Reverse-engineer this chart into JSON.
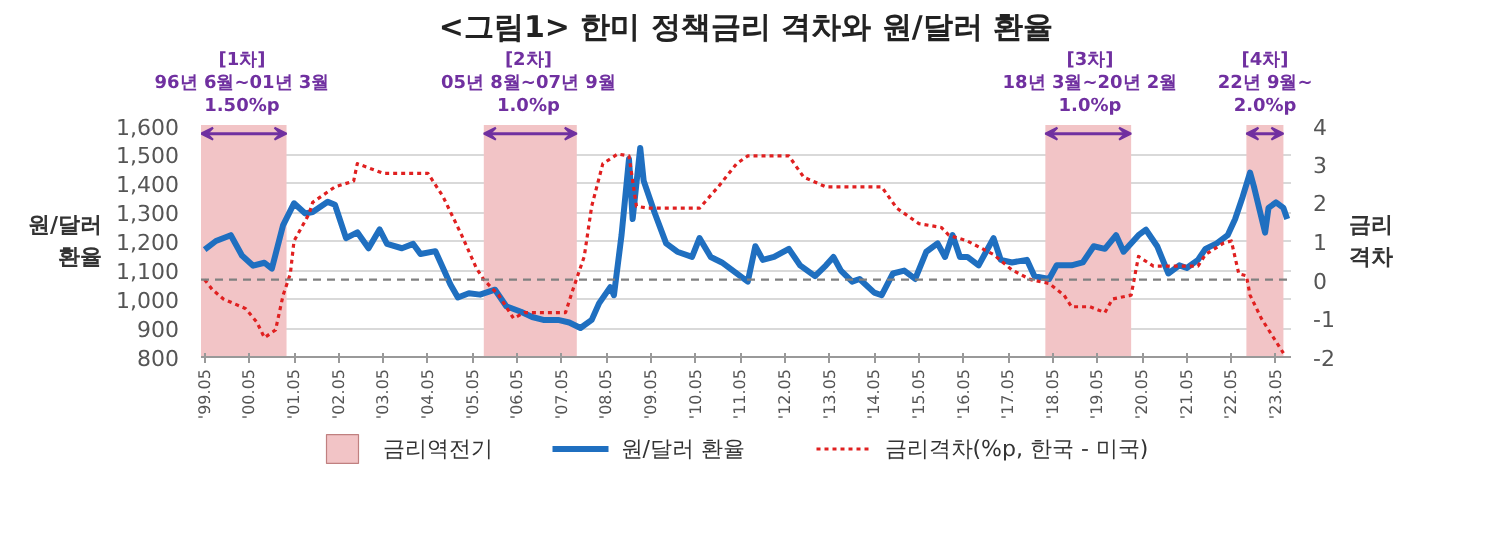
{
  "chart_data": {
    "type": "line",
    "title": "<그림1> 한미 정책금리 격차와 원/달러 환율",
    "ylabel": "원/달러\n환율",
    "y2label": "금리\n격차",
    "xlim": [
      "1999-04",
      "2023-09"
    ],
    "xticks": [
      {
        "value": "1999-05",
        "label": "'99.05"
      },
      {
        "value": "2000-05",
        "label": "'00.05"
      },
      {
        "value": "2001-05",
        "label": "'01.05"
      },
      {
        "value": "2002-05",
        "label": "'02.05"
      },
      {
        "value": "2003-05",
        "label": "'03.05"
      },
      {
        "value": "2004-05",
        "label": "'04.05"
      },
      {
        "value": "2005-05",
        "label": "'05.05"
      },
      {
        "value": "2006-05",
        "label": "'06.05"
      },
      {
        "value": "2007-05",
        "label": "'07.05"
      },
      {
        "value": "2008-05",
        "label": "'08.05"
      },
      {
        "value": "2009-05",
        "label": "'09.05"
      },
      {
        "value": "2010-05",
        "label": "'10.05"
      },
      {
        "value": "2011-05",
        "label": "'11.05"
      },
      {
        "value": "2012-05",
        "label": "'12.05"
      },
      {
        "value": "2013-05",
        "label": "'13.05"
      },
      {
        "value": "2014-05",
        "label": "'14.05"
      },
      {
        "value": "2015-05",
        "label": "'15.05"
      },
      {
        "value": "2016-05",
        "label": "'16.05"
      },
      {
        "value": "2017-05",
        "label": "'17.05"
      },
      {
        "value": "2018-05",
        "label": "'18.05"
      },
      {
        "value": "2019-05",
        "label": "'19.05"
      },
      {
        "value": "2020-05",
        "label": "'20.05"
      },
      {
        "value": "2021-05",
        "label": "'21.05"
      },
      {
        "value": "2022-05",
        "label": "'22.05"
      },
      {
        "value": "2023-05",
        "label": "'23.05"
      }
    ],
    "ylim": [
      800,
      1600
    ],
    "yticks": [
      {
        "value": 800,
        "label": "800"
      },
      {
        "value": 900,
        "label": "900"
      },
      {
        "value": 1000,
        "label": "1,000"
      },
      {
        "value": 1100,
        "label": "1,100"
      },
      {
        "value": 1200,
        "label": "1,200"
      },
      {
        "value": 1300,
        "label": "1,300"
      },
      {
        "value": 1400,
        "label": "1,400"
      },
      {
        "value": 1500,
        "label": "1,500"
      },
      {
        "value": 1600,
        "label": "1,600"
      }
    ],
    "y2lim": [
      -2,
      4
    ],
    "y2ticks": [
      -2,
      -1,
      0,
      1,
      2,
      3,
      4
    ],
    "grid": "y",
    "legend": "bottom",
    "series": [
      {
        "name": "원/달러 환율",
        "color": "#1f6fc0",
        "line_style": "solid",
        "x": [
          "1999-05",
          "1999-08",
          "1999-12",
          "2000-03",
          "2000-06",
          "2000-09",
          "2000-11",
          "2001-02",
          "2001-05",
          "2001-08",
          "2001-10",
          "2002-02",
          "2002-04",
          "2002-07",
          "2002-10",
          "2003-01",
          "2003-04",
          "2003-06",
          "2003-10",
          "2004-01",
          "2004-03",
          "2004-07",
          "2004-11",
          "2005-01",
          "2005-04",
          "2005-07",
          "2005-11",
          "2006-02",
          "2006-06",
          "2006-09",
          "2006-12",
          "2007-04",
          "2007-07",
          "2007-10",
          "2008-01",
          "2008-03",
          "2008-06",
          "2008-07",
          "2008-09",
          "2008-11",
          "2008-12",
          "2009-02",
          "2009-03",
          "2009-06",
          "2009-09",
          "2009-12",
          "2010-04",
          "2010-06",
          "2010-09",
          "2010-12",
          "2011-05",
          "2011-07",
          "2011-09",
          "2011-11",
          "2012-02",
          "2012-06",
          "2012-09",
          "2013-01",
          "2013-04",
          "2013-06",
          "2013-08",
          "2013-11",
          "2014-01",
          "2014-05",
          "2014-07",
          "2014-10",
          "2015-01",
          "2015-04",
          "2015-07",
          "2015-10",
          "2015-12",
          "2016-02",
          "2016-04",
          "2016-06",
          "2016-09",
          "2016-11",
          "2017-01",
          "2017-03",
          "2017-06",
          "2017-10",
          "2017-12",
          "2018-04",
          "2018-06",
          "2018-10",
          "2019-01",
          "2019-04",
          "2019-07",
          "2019-10",
          "2019-12",
          "2020-04",
          "2020-06",
          "2020-09",
          "2020-12",
          "2021-03",
          "2021-05",
          "2021-08",
          "2021-10",
          "2022-01",
          "2022-04",
          "2022-06",
          "2022-08",
          "2022-10",
          "2022-11",
          "2023-02",
          "2023-03",
          "2023-05",
          "2023-07",
          "2023-08"
        ],
        "values": [
          1170,
          1200,
          1220,
          1150,
          1115,
          1125,
          1105,
          1255,
          1330,
          1295,
          1300,
          1335,
          1325,
          1210,
          1230,
          1175,
          1240,
          1190,
          1175,
          1190,
          1155,
          1165,
          1050,
          1005,
          1020,
          1015,
          1032,
          975,
          956,
          938,
          928,
          928,
          919,
          900,
          928,
          985,
          1041,
          1013,
          1220,
          1483,
          1276,
          1521,
          1408,
          1295,
          1192,
          1163,
          1145,
          1210,
          1145,
          1126,
          1079,
          1060,
          1182,
          1135,
          1145,
          1173,
          1116,
          1079,
          1116,
          1145,
          1098,
          1060,
          1069,
          1022,
          1013,
          1088,
          1098,
          1069,
          1163,
          1192,
          1145,
          1220,
          1145,
          1145,
          1116,
          1163,
          1210,
          1135,
          1126,
          1135,
          1079,
          1069,
          1116,
          1116,
          1126,
          1182,
          1173,
          1220,
          1163,
          1220,
          1239,
          1182,
          1088,
          1116,
          1107,
          1135,
          1173,
          1192,
          1220,
          1276,
          1352,
          1436,
          1389,
          1229,
          1314,
          1333,
          1314,
          1276
        ]
      },
      {
        "name": "금리격차(%p, 한국 - 미국)",
        "color": "#e02020",
        "line_style": "dotted",
        "axis": "y2",
        "x": [
          "1999-05",
          "1999-07",
          "1999-10",
          "2000-04",
          "2000-07",
          "2000-09",
          "2000-12",
          "2001-02",
          "2001-04",
          "2001-05",
          "2001-09",
          "2001-10",
          "2002-04",
          "2002-09",
          "2002-10",
          "2003-05",
          "2004-05",
          "2004-09",
          "2005-02",
          "2005-06",
          "2005-08",
          "2005-12",
          "2006-04",
          "2006-07",
          "2007-06",
          "2007-08",
          "2007-11",
          "2008-01",
          "2008-04",
          "2008-08",
          "2008-11",
          "2009-01",
          "2009-04",
          "2010-06",
          "2010-11",
          "2011-04",
          "2011-07",
          "2012-06",
          "2012-10",
          "2013-04",
          "2014-07",
          "2014-11",
          "2015-05",
          "2015-11",
          "2016-01",
          "2016-06",
          "2017-01",
          "2017-06",
          "2017-11",
          "2018-04",
          "2018-08",
          "2018-10",
          "2019-03",
          "2019-07",
          "2019-09",
          "2020-02",
          "2020-04",
          "2020-08",
          "2021-08",
          "2021-10",
          "2022-03",
          "2022-05",
          "2022-07",
          "2022-09",
          "2022-10",
          "2023-01",
          "2023-04",
          "2023-07"
        ],
        "values": [
          0.0,
          -0.25,
          -0.5,
          -0.75,
          -1.1,
          -1.5,
          -1.3,
          -0.4,
          0.15,
          1.0,
          1.7,
          2.0,
          2.4,
          2.55,
          3.0,
          2.75,
          2.75,
          2.15,
          1.15,
          0.3,
          0.0,
          -0.4,
          -1.0,
          -0.85,
          -0.85,
          -0.25,
          0.6,
          1.9,
          3.0,
          3.25,
          3.2,
          1.9,
          1.85,
          1.85,
          2.4,
          3.0,
          3.2,
          3.2,
          2.65,
          2.4,
          2.4,
          1.85,
          1.45,
          1.35,
          1.15,
          1.0,
          0.65,
          0.25,
          0.0,
          -0.1,
          -0.4,
          -0.7,
          -0.7,
          -0.85,
          -0.5,
          -0.4,
          0.6,
          0.35,
          0.35,
          0.65,
          0.95,
          1.0,
          0.15,
          0.1,
          -0.4,
          -1.0,
          -1.45,
          -1.9
        ]
      }
    ],
    "bands": [
      {
        "axis": "x",
        "from": "1999-04",
        "to": "2001-03",
        "label": "금리역전기",
        "color": "#f2c4c6"
      },
      {
        "axis": "x",
        "from": "2005-08",
        "to": "2007-09",
        "color": "#f2c4c6"
      },
      {
        "axis": "x",
        "from": "2018-03",
        "to": "2020-02",
        "color": "#f2c4c6"
      },
      {
        "axis": "x",
        "from": "2022-09",
        "to": "2023-07",
        "color": "#f2c4c6"
      }
    ],
    "ref_lines": [
      {
        "axis": "y2",
        "value": 0,
        "color": "#808080",
        "line_style": "dashed"
      }
    ],
    "annotations": [
      {
        "text": "[1차]\n96년 6월~01년 3월\n1.50%p",
        "x": "2000-03",
        "y": 1570
      },
      {
        "text": "[2차]\n05년 8월~07년 9월\n1.0%p",
        "x": "2006-08",
        "y": 1570
      },
      {
        "text": "[3차]\n18년 3월~20년 2월\n1.0%p",
        "x": "2019-03",
        "y": 1570
      },
      {
        "text": "[4차]\n22년 9월~\n2.0%p",
        "x": "2023-02",
        "y": 1570
      }
    ]
  }
}
